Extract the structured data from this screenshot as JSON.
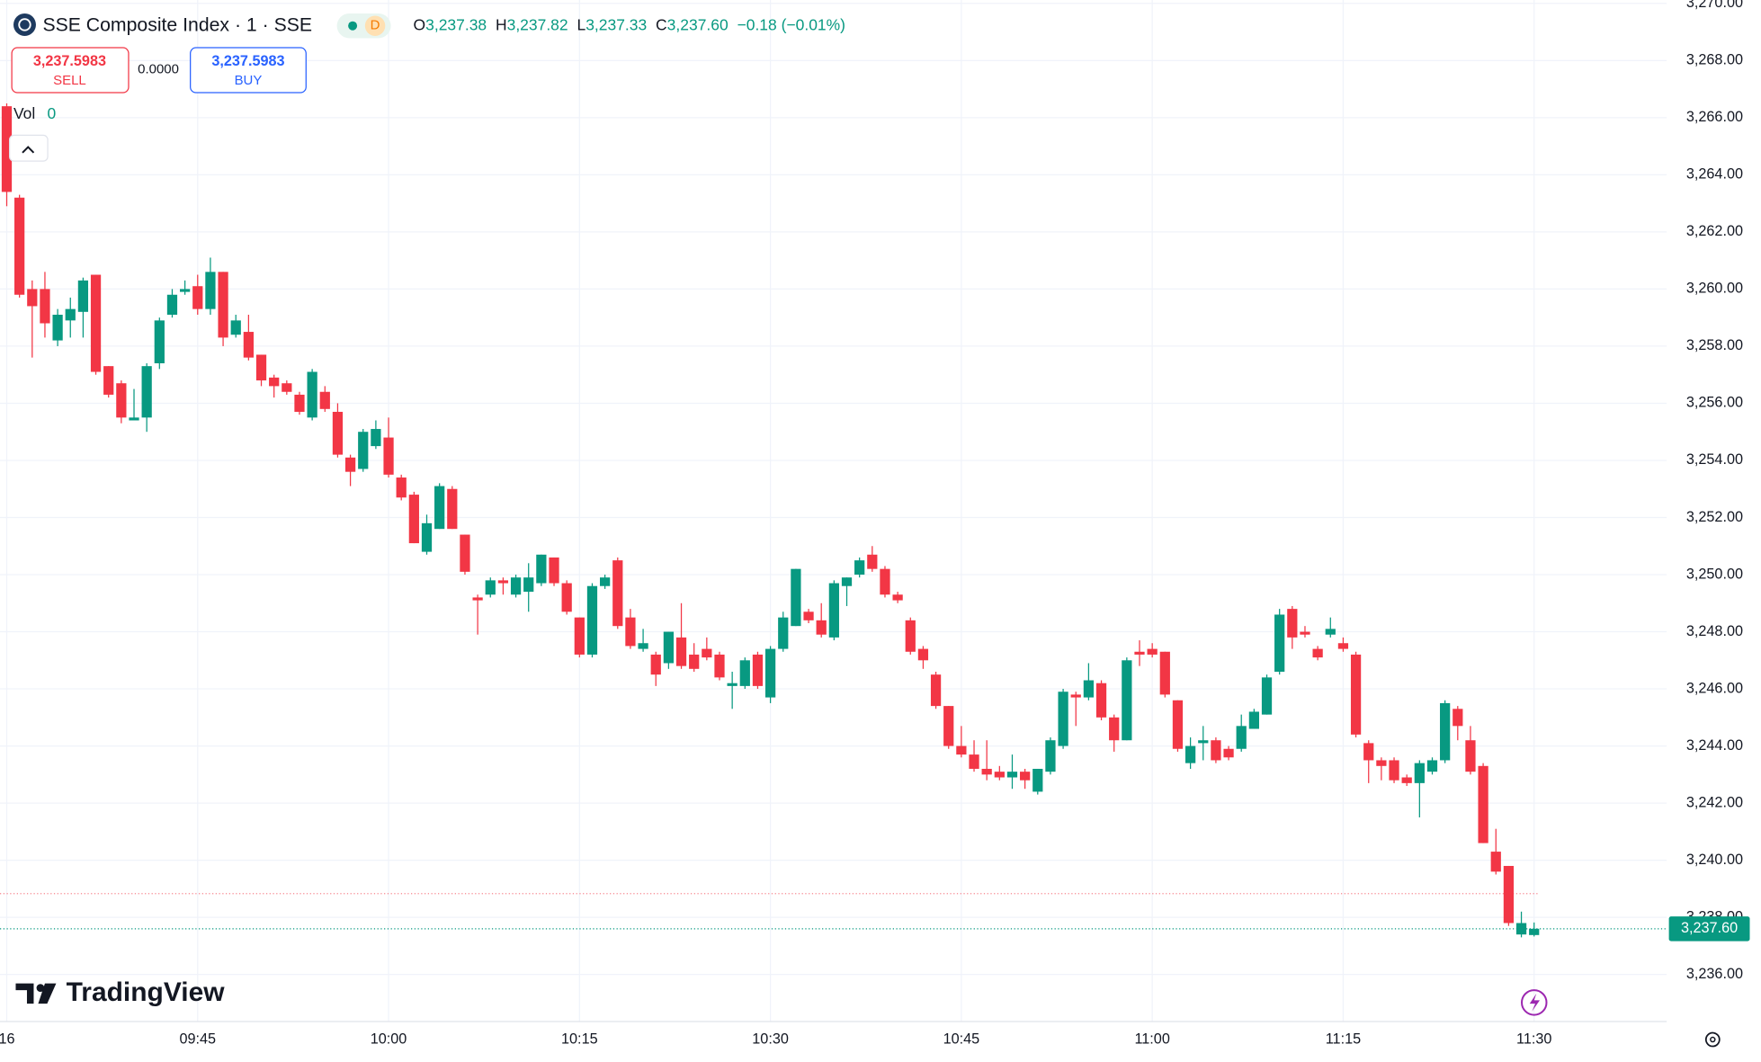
{
  "header": {
    "title": "SSE Composite Index · 1 · SSE",
    "interval_badge": "D",
    "ohlc": [
      {
        "label": "O",
        "value": "3,237.38"
      },
      {
        "label": "H",
        "value": "3,237.82"
      },
      {
        "label": "L",
        "value": "3,237.33"
      },
      {
        "label": "C",
        "value": "3,237.60"
      }
    ],
    "change": "−0.18 (−0.01%)"
  },
  "trade": {
    "sell_price": "3,237.5983",
    "sell": "SELL",
    "spread": "0.0000",
    "buy_price": "3,237.5983",
    "buy": "BUY"
  },
  "volume": {
    "label": "Vol",
    "value": "0"
  },
  "logo": "TradingView",
  "chart_data": {
    "type": "candlestick",
    "up_color": "#089981",
    "down_color": "#f23645",
    "grid": true,
    "x": [
      "09:30",
      "09:31",
      "09:32",
      "09:33",
      "09:34",
      "09:35",
      "09:36",
      "09:37",
      "09:38",
      "09:39",
      "09:40",
      "09:41",
      "09:42",
      "09:43",
      "09:44",
      "09:45",
      "09:46",
      "09:47",
      "09:48",
      "09:49",
      "09:50",
      "09:51",
      "09:52",
      "09:53",
      "09:54",
      "09:55",
      "09:56",
      "09:57",
      "09:58",
      "09:59",
      "10:00",
      "10:01",
      "10:02",
      "10:03",
      "10:04",
      "10:05",
      "10:06",
      "10:07",
      "10:08",
      "10:09",
      "10:10",
      "10:11",
      "10:12",
      "10:13",
      "10:14",
      "10:15",
      "10:16",
      "10:17",
      "10:18",
      "10:19",
      "10:20",
      "10:21",
      "10:22",
      "10:23",
      "10:24",
      "10:25",
      "10:26",
      "10:27",
      "10:28",
      "10:29",
      "10:30",
      "10:31",
      "10:32",
      "10:33",
      "10:34",
      "10:35",
      "10:36",
      "10:37",
      "10:38",
      "10:39",
      "10:40",
      "10:41",
      "10:42",
      "10:43",
      "10:44",
      "10:45",
      "10:46",
      "10:47",
      "10:48",
      "10:49",
      "10:50",
      "10:51",
      "10:52",
      "10:53",
      "10:54",
      "10:55",
      "10:56",
      "10:57",
      "10:58",
      "10:59",
      "11:00",
      "11:01",
      "11:02",
      "11:03",
      "11:04",
      "11:05",
      "11:06",
      "11:07",
      "11:08",
      "11:09",
      "11:10",
      "11:11",
      "11:12",
      "11:13",
      "11:14",
      "11:15",
      "11:16",
      "11:17",
      "11:18",
      "11:19",
      "11:20",
      "11:21",
      "11:22",
      "11:23",
      "11:24",
      "11:25",
      "11:26",
      "11:27",
      "11:28",
      "11:29",
      "11:30"
    ],
    "open": [
      3266.4,
      3263.2,
      3260.0,
      3260.0,
      3258.2,
      3258.9,
      3259.2,
      3260.5,
      3257.3,
      3256.7,
      3255.4,
      3255.5,
      3257.4,
      3259.1,
      3259.9,
      3260.1,
      3259.3,
      3260.6,
      3258.4,
      3258.5,
      3257.7,
      3256.9,
      3256.7,
      3256.3,
      3255.5,
      3256.4,
      3255.7,
      3254.1,
      3253.7,
      3254.5,
      3254.8,
      3253.4,
      3252.8,
      3250.8,
      3251.6,
      3253.0,
      3251.4,
      3249.2,
      3249.3,
      3249.8,
      3249.3,
      3249.4,
      3249.7,
      3250.6,
      3249.7,
      3248.5,
      3247.2,
      3249.6,
      3250.5,
      3248.5,
      3247.4,
      3247.2,
      3246.9,
      3247.8,
      3247.2,
      3247.4,
      3247.2,
      3246.1,
      3246.1,
      3247.2,
      3245.7,
      3247.4,
      3248.2,
      3248.7,
      3248.4,
      3247.8,
      3249.6,
      3250.0,
      3250.7,
      3250.2,
      3249.3,
      3248.4,
      3247.4,
      3246.5,
      3245.4,
      3244.0,
      3243.7,
      3243.2,
      3243.1,
      3242.9,
      3243.1,
      3242.4,
      3243.1,
      3244.0,
      3245.8,
      3245.7,
      3246.2,
      3245.0,
      3244.2,
      3247.3,
      3247.4,
      3247.3,
      3245.6,
      3243.4,
      3244.1,
      3244.2,
      3243.9,
      3243.9,
      3244.6,
      3245.1,
      3246.6,
      3248.8,
      3248.0,
      3247.4,
      3247.9,
      3247.6,
      3247.2,
      3244.1,
      3243.5,
      3243.5,
      3242.9,
      3242.7,
      3243.1,
      3243.5,
      3245.3,
      3244.2,
      3243.3,
      3240.3,
      3239.8,
      3237.4,
      3237.38
    ],
    "high": [
      3266.5,
      3263.3,
      3260.3,
      3260.6,
      3259.3,
      3259.7,
      3260.4,
      3260.5,
      3257.3,
      3256.8,
      3256.5,
      3257.4,
      3259.0,
      3260.0,
      3260.3,
      3260.5,
      3261.1,
      3260.6,
      3259.1,
      3259.1,
      3257.7,
      3257.0,
      3256.8,
      3256.4,
      3257.2,
      3256.6,
      3256.0,
      3254.2,
      3255.1,
      3255.4,
      3255.5,
      3253.5,
      3252.9,
      3252.1,
      3253.2,
      3253.1,
      3251.4,
      3249.3,
      3249.9,
      3249.9,
      3250.0,
      3250.4,
      3250.7,
      3250.6,
      3249.8,
      3248.5,
      3249.7,
      3250.0,
      3250.6,
      3248.8,
      3248.1,
      3247.3,
      3248.0,
      3249.0,
      3247.6,
      3247.8,
      3247.3,
      3246.6,
      3247.1,
      3247.3,
      3247.5,
      3248.7,
      3250.2,
      3248.8,
      3249.0,
      3249.8,
      3249.9,
      3250.6,
      3251.0,
      3250.3,
      3249.4,
      3248.5,
      3247.5,
      3246.6,
      3245.4,
      3244.7,
      3244.2,
      3244.2,
      3243.3,
      3243.7,
      3243.2,
      3243.2,
      3244.3,
      3246.0,
      3245.9,
      3246.9,
      3246.3,
      3245.1,
      3247.1,
      3247.7,
      3247.6,
      3247.3,
      3245.6,
      3244.3,
      3244.7,
      3244.3,
      3244.0,
      3245.1,
      3245.3,
      3246.5,
      3248.8,
      3248.9,
      3248.2,
      3247.5,
      3248.5,
      3247.8,
      3247.3,
      3244.2,
      3243.6,
      3243.6,
      3243.0,
      3243.5,
      3243.6,
      3245.6,
      3245.4,
      3244.7,
      3243.4,
      3241.1,
      3239.8,
      3238.2,
      3237.82
    ],
    "low": [
      3262.9,
      3259.7,
      3257.6,
      3258.3,
      3258.0,
      3258.3,
      3258.3,
      3257.0,
      3256.2,
      3255.3,
      3255.4,
      3255.0,
      3257.2,
      3259.0,
      3259.8,
      3259.1,
      3259.1,
      3258.0,
      3258.3,
      3257.5,
      3256.6,
      3256.2,
      3256.3,
      3255.6,
      3255.4,
      3255.7,
      3254.1,
      3253.1,
      3253.6,
      3254.4,
      3253.4,
      3252.6,
      3251.1,
      3250.7,
      3251.6,
      3251.6,
      3250.0,
      3247.9,
      3249.2,
      3249.3,
      3249.2,
      3248.7,
      3249.6,
      3249.6,
      3248.6,
      3247.1,
      3247.1,
      3249.5,
      3248.1,
      3247.4,
      3247.3,
      3246.1,
      3246.7,
      3246.7,
      3246.6,
      3247.0,
      3246.3,
      3245.3,
      3246.0,
      3246.0,
      3245.5,
      3247.3,
      3248.2,
      3248.3,
      3247.8,
      3247.7,
      3248.9,
      3249.9,
      3250.1,
      3249.2,
      3249.0,
      3247.2,
      3246.7,
      3245.3,
      3243.9,
      3243.6,
      3243.1,
      3242.8,
      3242.8,
      3242.5,
      3242.5,
      3242.3,
      3243.0,
      3243.9,
      3244.7,
      3245.6,
      3244.9,
      3243.8,
      3244.2,
      3246.8,
      3247.1,
      3245.7,
      3243.8,
      3243.2,
      3243.5,
      3243.4,
      3243.5,
      3243.8,
      3244.6,
      3245.1,
      3246.5,
      3247.4,
      3247.8,
      3247.0,
      3247.8,
      3247.3,
      3244.3,
      3242.7,
      3242.8,
      3242.7,
      3242.6,
      3241.5,
      3243.0,
      3243.4,
      3244.2,
      3243.0,
      3240.6,
      3239.5,
      3237.7,
      3237.3,
      3237.33
    ],
    "close": [
      3263.4,
      3259.8,
      3259.4,
      3258.8,
      3259.1,
      3259.3,
      3260.3,
      3257.1,
      3256.3,
      3255.5,
      3255.5,
      3257.3,
      3258.9,
      3259.8,
      3260.0,
      3259.3,
      3260.6,
      3258.3,
      3258.9,
      3257.6,
      3256.8,
      3256.6,
      3256.4,
      3255.7,
      3257.1,
      3255.8,
      3254.2,
      3253.6,
      3255.0,
      3255.1,
      3253.5,
      3252.7,
      3251.1,
      3251.8,
      3253.1,
      3251.6,
      3250.1,
      3249.1,
      3249.8,
      3249.7,
      3249.9,
      3249.9,
      3250.7,
      3249.7,
      3248.7,
      3247.2,
      3249.6,
      3249.9,
      3248.2,
      3247.5,
      3247.6,
      3246.5,
      3248.0,
      3246.8,
      3246.7,
      3247.1,
      3246.4,
      3246.2,
      3247.0,
      3246.1,
      3247.4,
      3248.5,
      3250.2,
      3248.4,
      3247.9,
      3249.7,
      3249.9,
      3250.5,
      3250.2,
      3249.3,
      3249.1,
      3247.3,
      3247.0,
      3245.4,
      3244.0,
      3243.7,
      3243.2,
      3243.0,
      3242.9,
      3243.1,
      3242.8,
      3243.2,
      3244.2,
      3245.9,
      3245.7,
      3246.3,
      3245.0,
      3244.2,
      3247.0,
      3247.2,
      3247.2,
      3245.8,
      3243.9,
      3244.0,
      3244.2,
      3243.5,
      3243.6,
      3244.7,
      3245.2,
      3246.4,
      3248.6,
      3247.8,
      3247.9,
      3247.1,
      3248.1,
      3247.4,
      3244.4,
      3243.5,
      3243.3,
      3242.8,
      3242.7,
      3243.4,
      3243.5,
      3245.5,
      3244.7,
      3243.1,
      3240.6,
      3239.6,
      3237.8,
      3237.8,
      3237.6
    ],
    "ylim": [
      3234.35,
      3270.12
    ],
    "yticks": [
      {
        "value": 3236,
        "label": "3,236.00"
      },
      {
        "value": 3238,
        "label": "3,238.00"
      },
      {
        "value": 3240,
        "label": "3,240.00"
      },
      {
        "value": 3242,
        "label": "3,242.00"
      },
      {
        "value": 3244,
        "label": "3,244.00"
      },
      {
        "value": 3246,
        "label": "3,246.00"
      },
      {
        "value": 3248,
        "label": "3,248.00"
      },
      {
        "value": 3250,
        "label": "3,250.00"
      },
      {
        "value": 3252,
        "label": "3,252.00"
      },
      {
        "value": 3254,
        "label": "3,254.00"
      },
      {
        "value": 3256,
        "label": "3,256.00"
      },
      {
        "value": 3258,
        "label": "3,258.00"
      },
      {
        "value": 3260,
        "label": "3,260.00"
      },
      {
        "value": 3262,
        "label": "3,262.00"
      },
      {
        "value": 3264,
        "label": "3,264.00"
      },
      {
        "value": 3266,
        "label": "3,266.00"
      },
      {
        "value": 3268,
        "label": "3,268.00"
      },
      {
        "value": 3270,
        "label": "3,270.00"
      }
    ],
    "xticks": [
      {
        "value": "09:30",
        "label": "16"
      },
      {
        "value": "09:45",
        "label": "09:45"
      },
      {
        "value": "10:00",
        "label": "10:00"
      },
      {
        "value": "10:15",
        "label": "10:15"
      },
      {
        "value": "10:30",
        "label": "10:30"
      },
      {
        "value": "10:45",
        "label": "10:45"
      },
      {
        "value": "11:00",
        "label": "11:00"
      },
      {
        "value": "11:15",
        "label": "11:15"
      },
      {
        "value": "11:30",
        "label": "11:30"
      }
    ],
    "prev_close_line": {
      "value": 3238.83,
      "color": "#f23645"
    },
    "last_price": {
      "value": 3237.6,
      "label": "3,237.60",
      "color": "#089981"
    }
  }
}
